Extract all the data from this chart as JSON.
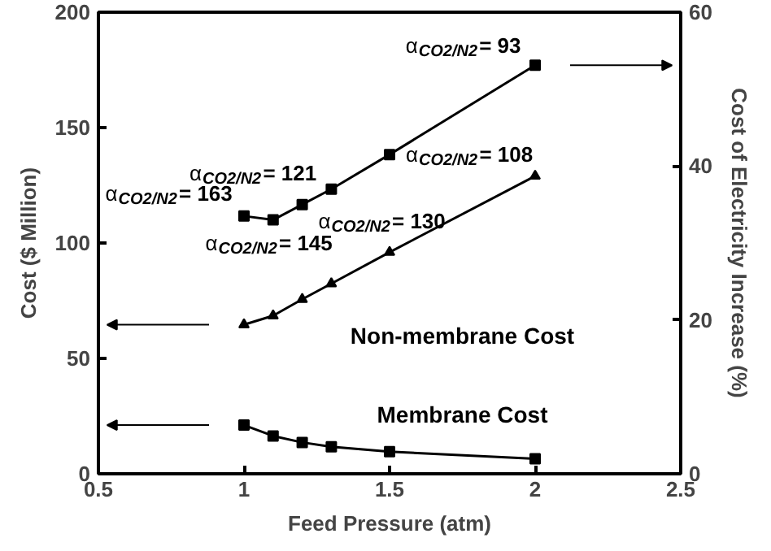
{
  "chart_data": {
    "type": "line",
    "xlabel": "Feed Pressure (atm)",
    "ylabel": "Cost ($ Million)",
    "y2label": "Cost of Electricity Increase (%)",
    "xlim": [
      0.5,
      2.5
    ],
    "xticks": [
      0.5,
      1,
      1.5,
      2,
      2.5
    ],
    "ylim": [
      0,
      200
    ],
    "yticks": [
      0,
      50,
      100,
      150,
      200
    ],
    "y2lim": [
      0,
      60
    ],
    "y2ticks": [
      0,
      20,
      40,
      60
    ],
    "grid": false,
    "x": [
      1,
      1.1,
      1.2,
      1.3,
      1.5,
      2
    ],
    "series": [
      {
        "color": "#000000",
        "marker": "square",
        "axis": "y2",
        "values": [
          33.5,
          33.0,
          35.0,
          37.0,
          41.5,
          53.1
        ]
      },
      {
        "name": "Non-membrane Cost",
        "color": "#000000",
        "marker": "triangle",
        "values": [
          64.6,
          68.5,
          75.6,
          82.4,
          96,
          129
        ]
      },
      {
        "name": "Membrane Cost",
        "color": "#000000",
        "marker": "square",
        "values": [
          21.1,
          16.4,
          13.6,
          11.7,
          9.6,
          6.5
        ]
      }
    ],
    "annotations": [
      "α$_{CO2/N2}$= 163",
      "α$_{CO2/N2}$= 145",
      "α$_{CO2/N2}$= 130",
      "α$_{CO2/N2}$= 121",
      "α$_{CO2/N2}$= 108",
      "α$_{CO2/N2}$= 93"
    ]
  }
}
